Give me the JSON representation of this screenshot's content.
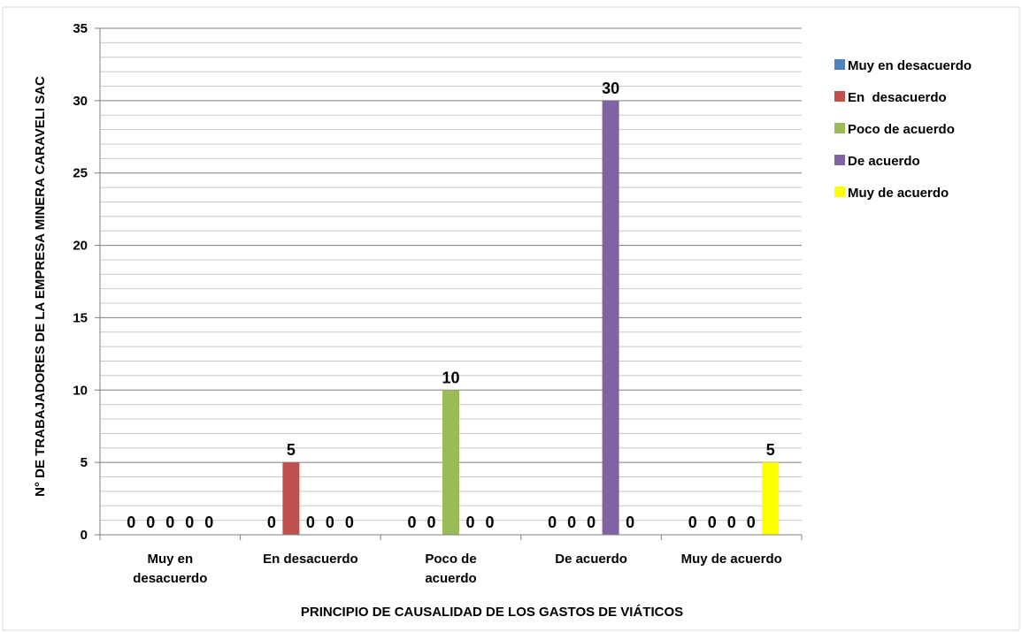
{
  "chart_data": {
    "type": "bar",
    "title": "",
    "xlabel": "PRINCIPIO DE CAUSALIDAD DE LOS GASTOS DE VIÁTICOS",
    "ylabel": "N° DE TRABAJADORES DE LA EMPRESA MINERA CARAVELI SAC",
    "ylim": [
      0,
      35
    ],
    "y_ticks": [
      "0",
      "5",
      "10",
      "15",
      "20",
      "25",
      "30",
      "35"
    ],
    "grid": true,
    "minor_grid": true,
    "legend_position": "right",
    "categories": [
      [
        "Muy en",
        "desacuerdo"
      ],
      [
        "En  desacuerdo"
      ],
      [
        "Poco de",
        "acuerdo"
      ],
      [
        "De acuerdo"
      ],
      [
        "Muy de acuerdo"
      ]
    ],
    "series": [
      {
        "name": "Muy en desacuerdo",
        "color": "#4F81BD",
        "values": [
          0,
          0,
          0,
          0,
          0
        ]
      },
      {
        "name": "En  desacuerdo",
        "color": "#C0504D",
        "values": [
          0,
          5,
          0,
          0,
          0
        ]
      },
      {
        "name": "Poco de acuerdo",
        "color": "#9BBB59",
        "values": [
          0,
          0,
          10,
          0,
          0
        ]
      },
      {
        "name": "De acuerdo",
        "color": "#8064A2",
        "values": [
          0,
          0,
          0,
          30,
          0
        ]
      },
      {
        "name": "Muy de acuerdo",
        "color": "#FFFF00",
        "values": [
          0,
          0,
          0,
          0,
          5
        ]
      }
    ]
  }
}
